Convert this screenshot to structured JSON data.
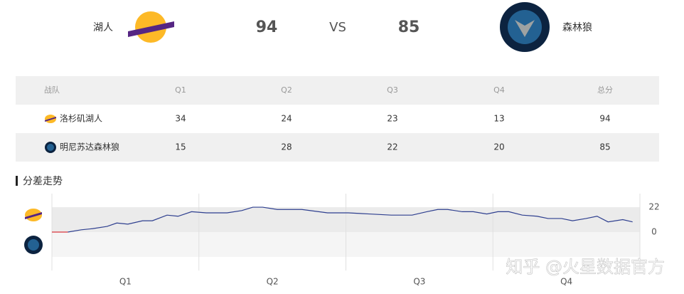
{
  "header": {
    "home_team": "湖人",
    "home_score": 94,
    "vs": "VS",
    "away_score": 85,
    "away_team": "森林狼"
  },
  "table": {
    "columns": [
      "战队",
      "Q1",
      "Q2",
      "Q3",
      "Q4",
      "总分"
    ],
    "rows": [
      [
        "洛杉矶湖人",
        34,
        24,
        23,
        13,
        94
      ],
      [
        "明尼苏达森林狼",
        15,
        28,
        22,
        20,
        85
      ]
    ]
  },
  "section_title": "分差走势",
  "chart_data": {
    "type": "line",
    "x": [
      0,
      1.3,
      2.4,
      3.3,
      4.5,
      5.3,
      6.2,
      7.4,
      8.2,
      9.4,
      10.3,
      11.4,
      12.6,
      14.3,
      15.5,
      16.4,
      17.2,
      18.4,
      20.4,
      22.5,
      24.2,
      25.9,
      27.7,
      29.4,
      30.6,
      31.5,
      32.3,
      33.5,
      34.4,
      35.5,
      36.4,
      37.3,
      38.4,
      39.6,
      40.5,
      41.6,
      42.5,
      43.6,
      44.5,
      45.4,
      46.6,
      47.4
    ],
    "values": [
      0,
      0,
      2,
      3,
      5,
      8,
      7,
      10,
      10,
      15,
      14,
      18,
      17,
      17,
      19,
      22,
      22,
      20,
      20,
      17,
      17,
      16,
      15,
      15,
      18,
      20,
      20,
      18,
      18,
      16,
      18,
      18,
      15,
      14,
      12,
      12,
      10,
      12,
      14,
      9,
      11,
      9
    ],
    "color": "#2e3f8f",
    "negative_color": "#d9363e",
    "xlim": [
      0,
      48
    ],
    "ylim": [
      -34,
      34
    ],
    "yticks": [
      0,
      22
    ],
    "xticks": [
      {
        "value": 6,
        "label": "Q1"
      },
      {
        "value": 18,
        "label": "Q2"
      },
      {
        "value": 30,
        "label": "Q3"
      },
      {
        "value": 42,
        "label": "Q4"
      }
    ],
    "period_lines": [
      0,
      12,
      24,
      36,
      48
    ],
    "bands": [
      {
        "range": [
          0,
          22
        ],
        "color": "#ebebeb"
      },
      {
        "range": [
          -22,
          0
        ],
        "color": "#f5f5f5"
      }
    ]
  },
  "watermark": "知乎 @火星数据官方"
}
